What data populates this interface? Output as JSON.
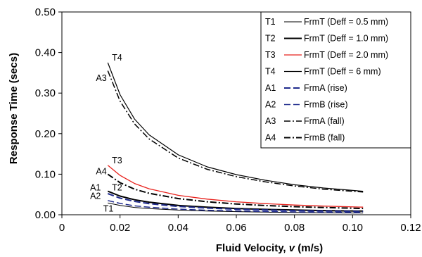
{
  "chart_data": {
    "type": "line",
    "title": "",
    "xlabel": "Fluid Velocity, ",
    "xlabel_var": "v",
    "xlabel_unit": " (m/s)",
    "ylabel": "Response Time (secs)",
    "xlim": [
      0,
      0.12
    ],
    "ylim": [
      0,
      0.5
    ],
    "x_ticks": [
      0,
      0.02,
      0.04,
      0.06,
      0.08,
      0.1,
      0.12
    ],
    "x_tick_labels": [
      "0",
      "0.02",
      "0.04",
      "0.06",
      "0.08",
      "0.10",
      "0.12"
    ],
    "y_ticks": [
      0,
      0.1,
      0.2,
      0.3,
      0.4,
      0.5
    ],
    "y_tick_labels": [
      "0.00",
      "0.10",
      "0.20",
      "0.30",
      "0.40",
      "0.50"
    ],
    "grid": false,
    "legend_position": "top-right",
    "series": [
      {
        "name": "FrmT (Deff = 0.5 mm)",
        "key": "T1",
        "color": "#000000",
        "style": "solid",
        "width": 1,
        "x": [
          0.0158,
          0.02,
          0.025,
          0.03,
          0.04,
          0.05,
          0.06,
          0.07,
          0.08,
          0.09,
          0.1036
        ],
        "y": [
          0.029,
          0.023,
          0.018,
          0.0152,
          0.0114,
          0.0091,
          0.0076,
          0.0065,
          0.0057,
          0.0051,
          0.0044
        ]
      },
      {
        "name": "FrmT (Deff = 1.0 mm)",
        "key": "T2",
        "color": "#000000",
        "style": "solid",
        "width": 2,
        "x": [
          0.0158,
          0.02,
          0.025,
          0.03,
          0.04,
          0.05,
          0.06,
          0.07,
          0.08,
          0.09,
          0.1036
        ],
        "y": [
          0.058,
          0.046,
          0.037,
          0.031,
          0.023,
          0.0185,
          0.0154,
          0.0132,
          0.0116,
          0.0103,
          0.009
        ]
      },
      {
        "name": "FrmT (Deff = 2.0 mm)",
        "key": "T3",
        "color": "#e8211c",
        "style": "solid",
        "width": 1.3,
        "x": [
          0.0158,
          0.02,
          0.025,
          0.03,
          0.04,
          0.05,
          0.06,
          0.07,
          0.08,
          0.09,
          0.1036
        ],
        "y": [
          0.122,
          0.097,
          0.077,
          0.064,
          0.048,
          0.0385,
          0.032,
          0.0275,
          0.024,
          0.0214,
          0.0187
        ]
      },
      {
        "name": "FrmT (Deff = 6 mm)",
        "key": "T4",
        "color": "#000000",
        "style": "solid",
        "width": 1.2,
        "x": [
          0.0158,
          0.02,
          0.025,
          0.03,
          0.04,
          0.05,
          0.06,
          0.07,
          0.08,
          0.09,
          0.1036
        ],
        "y": [
          0.375,
          0.296,
          0.236,
          0.197,
          0.148,
          0.118,
          0.099,
          0.085,
          0.074,
          0.066,
          0.058
        ]
      },
      {
        "name": "FrmA (rise)",
        "key": "A1",
        "color": "#1f2a8c",
        "style": "dash",
        "width": 2,
        "x": [
          0.0158,
          0.02,
          0.025,
          0.03,
          0.04,
          0.05,
          0.06,
          0.07,
          0.08,
          0.09,
          0.1036
        ],
        "y": [
          0.052,
          0.041,
          0.033,
          0.0275,
          0.0205,
          0.0165,
          0.0137,
          0.0118,
          0.0103,
          0.0092,
          0.008
        ]
      },
      {
        "name": "FrmB (rise)",
        "key": "A2",
        "color": "#1f2a8c",
        "style": "dash",
        "width": 1.5,
        "x": [
          0.0158,
          0.02,
          0.025,
          0.03,
          0.04,
          0.05,
          0.06,
          0.07,
          0.08,
          0.09,
          0.1036
        ],
        "y": [
          0.035,
          0.028,
          0.022,
          0.0185,
          0.0139,
          0.0111,
          0.0093,
          0.008,
          0.007,
          0.0062,
          0.0054
        ]
      },
      {
        "name": "FrmA (fall)",
        "key": "A3",
        "color": "#000000",
        "style": "dashdot",
        "width": 1.5,
        "x": [
          0.0158,
          0.02,
          0.025,
          0.03,
          0.04,
          0.05,
          0.06,
          0.07,
          0.08,
          0.09,
          0.1036
        ],
        "y": [
          0.355,
          0.28,
          0.224,
          0.187,
          0.14,
          0.112,
          0.094,
          0.081,
          0.071,
          0.063,
          0.056
        ]
      },
      {
        "name": "FrmB (fall)",
        "key": "A4",
        "color": "#000000",
        "style": "dashdot",
        "width": 2,
        "x": [
          0.0158,
          0.02,
          0.025,
          0.03,
          0.04,
          0.05,
          0.06,
          0.07,
          0.08,
          0.09,
          0.1036
        ],
        "y": [
          0.1,
          0.079,
          0.063,
          0.053,
          0.04,
          0.032,
          0.0265,
          0.0228,
          0.02,
          0.0178,
          0.0155
        ]
      }
    ],
    "legend": [
      {
        "key": "T1",
        "label": "FrmT (Deff = 0.5 mm)"
      },
      {
        "key": "T2",
        "label": "FrmT (Deff = 1.0 mm)"
      },
      {
        "key": "T3",
        "label": "FrmT (Deff = 2.0 mm)"
      },
      {
        "key": "T4",
        "label": "FrmT (Deff = 6 mm)"
      },
      {
        "key": "A1",
        "label": "FrmA (rise)"
      },
      {
        "key": "A2",
        "label": "FrmB (rise)"
      },
      {
        "key": "A3",
        "label": "FrmA (fall)"
      },
      {
        "key": "A4",
        "label": "FrmB (fall)"
      }
    ],
    "curve_labels": [
      {
        "text": "T4",
        "x": 0.0172,
        "y": 0.38
      },
      {
        "text": "A3",
        "x": 0.0117,
        "y": 0.33
      },
      {
        "text": "T3",
        "x": 0.0172,
        "y": 0.127
      },
      {
        "text": "A4",
        "x": 0.0117,
        "y": 0.1
      },
      {
        "text": "A1",
        "x": 0.0097,
        "y": 0.06
      },
      {
        "text": "T2",
        "x": 0.0172,
        "y": 0.06
      },
      {
        "text": "A2",
        "x": 0.0097,
        "y": 0.039
      },
      {
        "text": "T1",
        "x": 0.0142,
        "y": 0.008
      }
    ]
  }
}
